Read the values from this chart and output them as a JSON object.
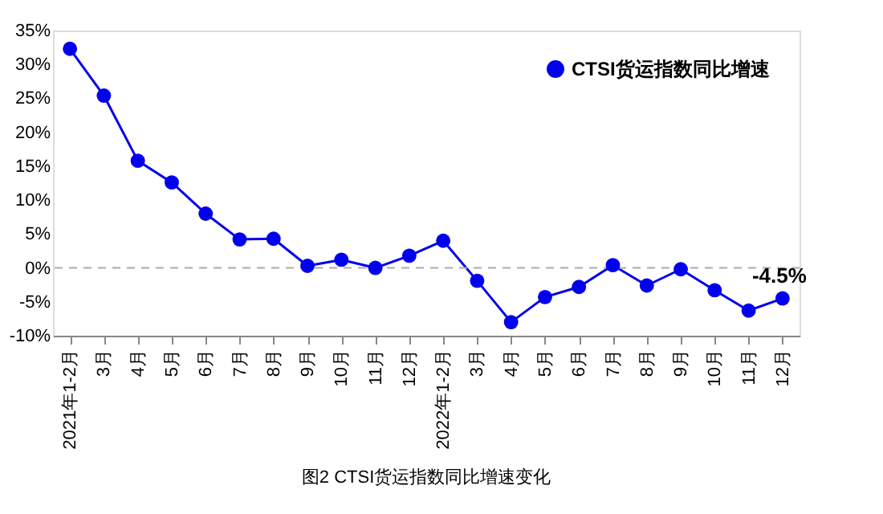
{
  "chart_data": {
    "type": "line",
    "title": "图2 CTSI货运指数同比增速变化",
    "categories": [
      "2021年1-2月",
      "3月",
      "4月",
      "5月",
      "6月",
      "7月",
      "8月",
      "9月",
      "10月",
      "11月",
      "12月",
      "2022年1-2月",
      "3月",
      "4月",
      "5月",
      "6月",
      "7月",
      "8月",
      "9月",
      "10月",
      "11月",
      "12月"
    ],
    "series": [
      {
        "name": "CTSI货运指数同比增速",
        "color": "#0000ee",
        "values": [
          32.3,
          25.4,
          15.8,
          12.6,
          8.0,
          4.2,
          4.3,
          0.3,
          1.2,
          0.0,
          1.8,
          4.0,
          -1.9,
          -8.0,
          -4.3,
          -2.8,
          0.4,
          -2.6,
          -0.2,
          -3.3,
          -6.3,
          -4.5
        ],
        "value_labels": [
          null,
          null,
          null,
          null,
          null,
          null,
          null,
          null,
          null,
          null,
          null,
          null,
          null,
          null,
          null,
          null,
          null,
          null,
          null,
          null,
          null,
          "-4.5%"
        ]
      }
    ],
    "ylim": [
      -10,
      35
    ],
    "yticks": [
      {
        "value": -10,
        "label": "-10%"
      },
      {
        "value": -5,
        "label": "-5%"
      },
      {
        "value": 0,
        "label": "0%"
      },
      {
        "value": 5,
        "label": "5%"
      },
      {
        "value": 10,
        "label": "10%"
      },
      {
        "value": 15,
        "label": "15%"
      },
      {
        "value": 20,
        "label": "20%"
      },
      {
        "value": 25,
        "label": "25%"
      },
      {
        "value": 30,
        "label": "30%"
      },
      {
        "value": 35,
        "label": "35%"
      }
    ],
    "ref_lines": [
      {
        "axis": "y",
        "value": 0,
        "label": null,
        "color": "#aaaaaa",
        "line_style": "dashed"
      }
    ],
    "grid": false,
    "legend": "top right",
    "marker": "circle",
    "line_style": "solid"
  }
}
